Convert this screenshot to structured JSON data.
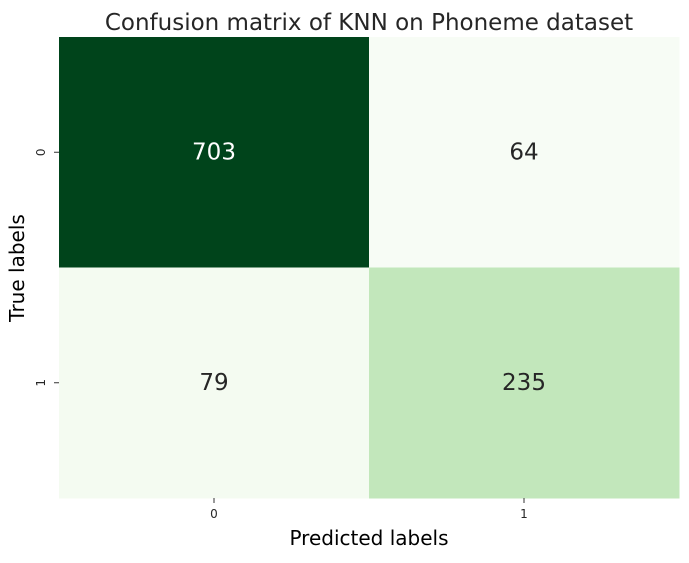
{
  "chart_data": {
    "type": "heatmap",
    "title": "Confusion matrix of KNN on Phoneme dataset",
    "xlabel": "Predicted labels",
    "ylabel": "True labels",
    "x_categories": [
      "0",
      "1"
    ],
    "y_categories": [
      "0",
      "1"
    ],
    "values": [
      [
        703,
        64
      ],
      [
        79,
        235
      ]
    ],
    "colormap": "Greens",
    "color_range": [
      64,
      703
    ],
    "colorbar": false,
    "annotations": true
  }
}
